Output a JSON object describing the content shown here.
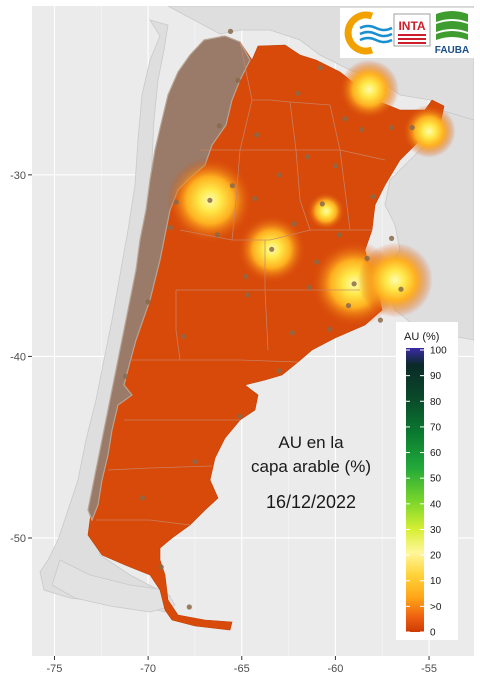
{
  "map": {
    "title_line1": "AU en la",
    "title_line2": "capa arable (%)",
    "date": "16/12/2022",
    "x_ticks": [
      "-75",
      "-70",
      "-65",
      "-60",
      "-55"
    ],
    "y_ticks": [
      "-30",
      "-40",
      "-50"
    ],
    "x_tick_values": [
      -75,
      -70,
      -65,
      -60,
      -55
    ],
    "y_tick_values": [
      -30,
      -40,
      -50
    ],
    "lon_range": [
      -76.2,
      -52.6
    ],
    "lat_range": [
      -56.5,
      -20.7
    ],
    "panel_background": "#ebebeb",
    "grid_color": "#ffffff",
    "land_fill": "#d84a0a",
    "andes_fill": "#9a7a68",
    "other_land_fill": "#dcdcdc",
    "wet_spots": [
      {
        "lon": -66.7,
        "lat": -31.4,
        "value": 30
      },
      {
        "lon": -63.4,
        "lat": -34.1,
        "value": 22
      },
      {
        "lon": -59.0,
        "lat": -36.0,
        "value": 30
      },
      {
        "lon": -56.8,
        "lat": -35.8,
        "value": 25
      },
      {
        "lon": -58.2,
        "lat": -25.3,
        "value": 18
      },
      {
        "lon": -55.0,
        "lat": -27.6,
        "value": 15
      },
      {
        "lon": -60.5,
        "lat": -32.0,
        "value": 8
      }
    ]
  },
  "legend": {
    "title": "AU (%)",
    "labels": [
      "100",
      "90",
      "80",
      "70",
      "60",
      "50",
      "40",
      "30",
      "20",
      "10",
      ">0",
      "0"
    ],
    "colors": [
      "#3a2aa6",
      "#0a2a28",
      "#0a4a2a",
      "#0a7a30",
      "#22a83a",
      "#7ad62a",
      "#d8ef34",
      "#fff79a",
      "#ffd338",
      "#ffa418",
      "#ee5e10",
      "#cc3a04"
    ]
  },
  "logos": {
    "inta_text": "INTA",
    "fauba_text": "FAUBA",
    "colors": {
      "orange": "#f2a200",
      "blue": "#1a8fd0",
      "red": "#cc1f2b",
      "green": "#3f9d2f"
    }
  }
}
